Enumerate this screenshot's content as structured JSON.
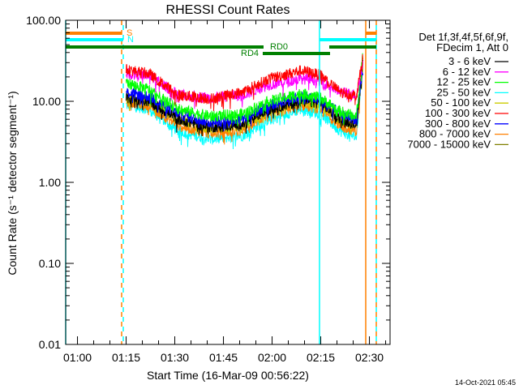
{
  "chart_data": {
    "type": "line",
    "title": "RHESSI Count Rates",
    "xlabel": "Start Time (16-Mar-09 00:56:22)",
    "ylabel": "Count Rate (s⁻¹ detector segment⁻¹)",
    "yscale": "log",
    "ylim": [
      0.01,
      100
    ],
    "xlim": [
      "00:56:22",
      "02:36:22"
    ],
    "yticks": [
      "100.00",
      "10.00",
      "1.00",
      "0.10",
      "0.01"
    ],
    "xticks": [
      "01:00",
      "01:15",
      "01:30",
      "01:45",
      "02:00",
      "02:15",
      "02:30"
    ],
    "grid": false,
    "legend_position": "right",
    "legend_header": [
      "Det 1f,3f,4f,5f,6f,9f,",
      "FDecim 1, Att 0"
    ],
    "series": [
      {
        "name": "3 - 6 keV",
        "color": "#000000",
        "x": [
          "01:15",
          "01:22",
          "01:31",
          "01:41",
          "01:51",
          "01:59",
          "02:09",
          "02:15",
          "02:21",
          "02:26",
          "02:28"
        ],
        "values": [
          11,
          10,
          6,
          4.8,
          5.2,
          8,
          10,
          9.5,
          6,
          5.2,
          30
        ]
      },
      {
        "name": "6 - 12 keV",
        "color": "#ff00ff",
        "x": [
          "01:15",
          "01:22",
          "01:31",
          "01:41",
          "01:51",
          "01:59",
          "02:09",
          "02:15",
          "02:21",
          "02:26",
          "02:28"
        ],
        "values": [
          22,
          21,
          12,
          11,
          12,
          16,
          19,
          18,
          13,
          12,
          30
        ]
      },
      {
        "name": "12 - 25 keV",
        "color": "#00ff00",
        "x": [
          "01:15",
          "01:22",
          "01:31",
          "01:41",
          "01:51",
          "01:59",
          "02:09",
          "02:15",
          "02:21",
          "02:26",
          "02:28"
        ],
        "values": [
          17,
          14,
          8,
          6.5,
          7,
          10,
          12.5,
          11,
          7.5,
          6.5,
          40
        ]
      },
      {
        "name": "25 - 50 keV",
        "color": "#00ffff",
        "x": [
          "01:15",
          "01:22",
          "01:31",
          "01:41",
          "01:51",
          "01:59",
          "02:09",
          "02:15",
          "02:21",
          "02:26",
          "02:28"
        ],
        "values": [
          9,
          8,
          4.3,
          3.4,
          3.8,
          6,
          8,
          7,
          4.3,
          3.6,
          30
        ]
      },
      {
        "name": "50 - 100 keV",
        "color": "#cccc00",
        "x": [
          "01:15",
          "01:22",
          "01:31",
          "01:41",
          "01:51",
          "01:59",
          "02:09",
          "02:15",
          "02:21",
          "02:26",
          "02:28"
        ],
        "values": [
          11,
          10,
          6,
          4.6,
          5,
          7.8,
          10,
          9,
          5.8,
          5,
          30
        ]
      },
      {
        "name": "100 - 300 keV",
        "color": "#ff0000",
        "x": [
          "01:15",
          "01:22",
          "01:31",
          "01:41",
          "01:51",
          "01:59",
          "02:09",
          "02:15",
          "02:21",
          "02:26",
          "02:28"
        ],
        "values": [
          24.5,
          22,
          12,
          10.7,
          13,
          19,
          24,
          21,
          13,
          11.7,
          35
        ]
      },
      {
        "name": "300 - 800 keV",
        "color": "#0000ff",
        "x": [
          "01:15",
          "01:22",
          "01:31",
          "01:41",
          "01:51",
          "01:59",
          "02:09",
          "02:15",
          "02:21",
          "02:26",
          "02:28"
        ],
        "values": [
          13,
          11.5,
          7,
          5.5,
          6,
          9,
          11.5,
          10.5,
          7,
          6,
          25
        ]
      },
      {
        "name": "800 - 7000 keV",
        "color": "#ff8000",
        "x": [
          "01:15",
          "01:22",
          "01:31",
          "01:41",
          "01:51",
          "01:59",
          "02:09",
          "02:15",
          "02:21",
          "02:26",
          "02:28"
        ],
        "values": [
          10,
          9,
          5,
          4,
          4.5,
          7,
          9,
          8,
          5,
          4.3,
          30
        ]
      },
      {
        "name": "7000 - 15000 keV",
        "color": "#808000",
        "x": [],
        "values": []
      }
    ],
    "markers": {
      "vertical_lines": [
        {
          "time": "00:56:22",
          "color": "#00ffff",
          "style": "solid"
        },
        {
          "time": "01:13:37",
          "color": "#ff8000",
          "style": "dashed"
        },
        {
          "time": "01:14:07",
          "color": "#00ffff",
          "style": "dashed"
        },
        {
          "time": "02:14:37",
          "color": "#00ffff",
          "style": "solid"
        },
        {
          "time": "02:28:52",
          "color": "#ff8000",
          "style": "solid"
        },
        {
          "time": "02:32:07",
          "color": "#ff8000",
          "style": "dashed"
        },
        {
          "time": "02:32:07",
          "color": "#00ffff",
          "style": "dashed"
        }
      ],
      "flag_bars": [
        {
          "label": "S",
          "color": "#ff8000",
          "segments": [
            [
              "00:56:22",
              "01:13:37"
            ],
            [
              "02:28:52",
              "02:32:07"
            ]
          ]
        },
        {
          "label": "N",
          "color": "#00ffff",
          "segments": [
            [
              "00:56:22",
              "01:14:07"
            ],
            [
              "02:14:37",
              "02:32:07"
            ]
          ]
        },
        {
          "label": "RD0",
          "color": "#008000",
          "segments": [
            [
              "00:56:22",
              "01:57:22"
            ],
            [
              "02:17:37",
              "02:32:07"
            ]
          ]
        },
        {
          "label": "RD4",
          "color": "#008000",
          "segments": [
            [
              "01:57:07",
              "02:17:52"
            ]
          ]
        }
      ]
    }
  },
  "footer": {
    "timestamp": "14-Oct-2021 05:45"
  }
}
